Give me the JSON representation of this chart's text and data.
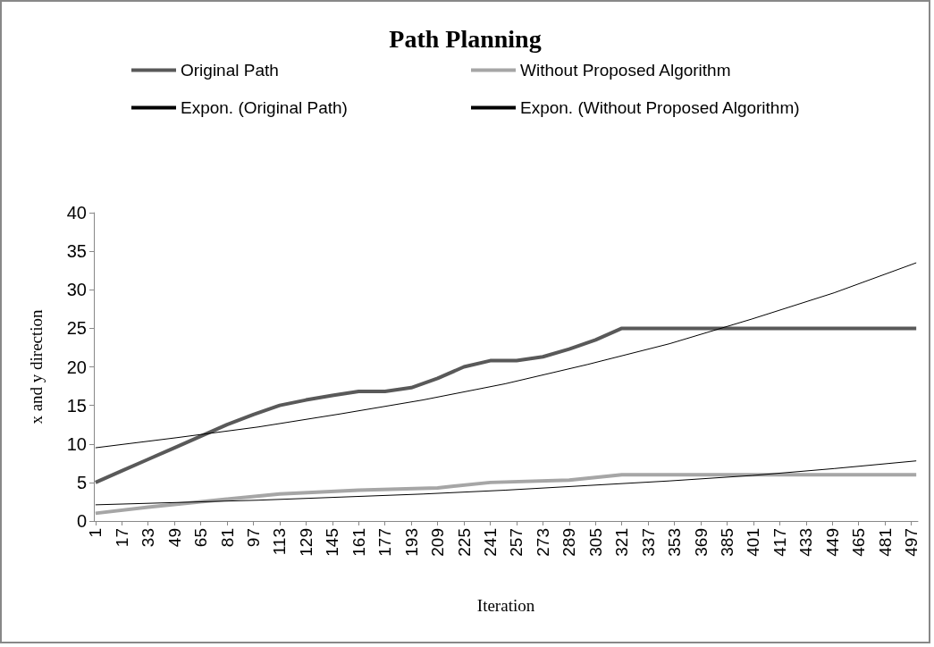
{
  "chart_data": {
    "type": "line",
    "title": "Path Planning",
    "xlabel": "Iteration",
    "ylabel": "x and y direction",
    "xlim": [
      0,
      501
    ],
    "xticks": [
      1,
      17,
      33,
      49,
      65,
      81,
      97,
      113,
      129,
      145,
      161,
      177,
      193,
      209,
      225,
      241,
      257,
      273,
      289,
      305,
      321,
      337,
      353,
      369,
      385,
      401,
      417,
      433,
      449,
      465,
      481,
      497
    ],
    "ylim": [
      0,
      40
    ],
    "yticks": [
      0,
      5,
      10,
      15,
      20,
      25,
      30,
      35,
      40
    ],
    "grid": false,
    "legend": "top",
    "series": [
      {
        "name": "Original Path",
        "color": "#595959",
        "x": [
          1,
          17,
          33,
          49,
          65,
          81,
          97,
          113,
          129,
          145,
          161,
          177,
          193,
          209,
          225,
          241,
          257,
          273,
          289,
          305,
          321,
          500
        ],
        "values": [
          5,
          6.5,
          8,
          9.5,
          11,
          12.5,
          13.8,
          15,
          15.7,
          16.3,
          16.8,
          16.8,
          17.3,
          18.5,
          20,
          20.8,
          20.8,
          21.3,
          22.3,
          23.5,
          25,
          25
        ]
      },
      {
        "name": "Without Proposed Algorithm",
        "color": "#a6a6a6",
        "x": [
          1,
          33,
          65,
          113,
          161,
          209,
          241,
          289,
          321,
          500
        ],
        "values": [
          1,
          1.8,
          2.5,
          3.5,
          4,
          4.3,
          5,
          5.3,
          6,
          6
        ]
      },
      {
        "name": "Expon. (Original Path)",
        "color": "#000000",
        "x": [
          1,
          50,
          100,
          150,
          200,
          250,
          300,
          350,
          400,
          450,
          500
        ],
        "values": [
          9.5,
          10.8,
          12.2,
          13.9,
          15.7,
          17.8,
          20.3,
          23,
          26.2,
          29.6,
          33.5
        ]
      },
      {
        "name": "Expon. (Without Proposed Algorithm)",
        "color": "#000000",
        "x": [
          1,
          50,
          100,
          150,
          200,
          250,
          300,
          350,
          400,
          450,
          500
        ],
        "values": [
          2.1,
          2.4,
          2.7,
          3.1,
          3.5,
          4,
          4.6,
          5.2,
          5.9,
          6.8,
          7.8
        ]
      }
    ]
  }
}
